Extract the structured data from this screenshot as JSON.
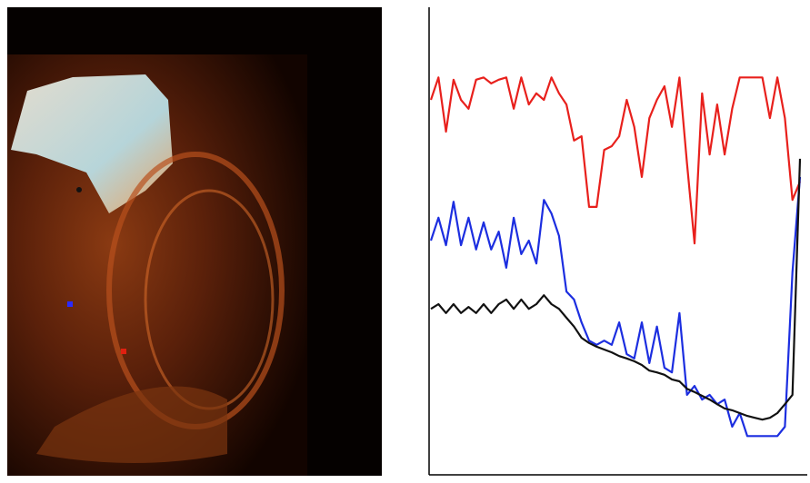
{
  "chart_data": {
    "type": "line",
    "x": [
      0,
      1,
      2,
      3,
      4,
      5,
      6,
      7,
      8,
      9,
      10,
      11,
      12,
      13,
      14,
      15,
      16,
      17,
      18,
      19,
      20,
      21,
      22,
      23,
      24,
      25,
      26,
      27,
      28,
      29,
      30,
      31,
      32,
      33,
      34,
      35,
      36,
      37,
      38,
      39,
      40,
      41,
      42,
      43,
      44,
      45,
      46,
      47,
      48,
      49
    ],
    "xlim": [
      0,
      49
    ],
    "ylim": [
      0,
      100
    ],
    "series": [
      {
        "color": "#e8201c",
        "values": [
          80.2,
          85.0,
          73.4,
          84.5,
          80.2,
          78.3,
          84.5,
          85.0,
          83.7,
          84.5,
          85.0,
          78.3,
          85.0,
          79.2,
          81.6,
          80.2,
          85.0,
          81.6,
          79.2,
          71.5,
          72.4,
          57.3,
          57.3,
          69.5,
          70.3,
          72.4,
          80.2,
          74.4,
          63.7,
          76.3,
          80.2,
          83.1,
          74.4,
          85.0,
          66.6,
          49.5,
          81.6,
          68.5,
          79.2,
          68.5,
          78.3,
          85.0,
          85.0,
          85.0,
          85.0,
          76.3,
          85.0,
          76.3,
          58.8,
          62.7
        ]
      },
      {
        "color": "#1c2ee0",
        "values": [
          50.1,
          55.0,
          49.1,
          58.4,
          49.1,
          55.0,
          48.2,
          54.0,
          48.2,
          52.0,
          44.3,
          55.0,
          47.2,
          50.1,
          45.2,
          58.8,
          55.9,
          51.1,
          39.2,
          37.5,
          32.6,
          28.7,
          27.8,
          28.7,
          27.8,
          32.6,
          25.8,
          24.9,
          32.6,
          23.9,
          31.7,
          22.9,
          21.9,
          34.6,
          17.1,
          19.0,
          16.1,
          17.1,
          15.1,
          16.1,
          10.3,
          13.2,
          8.3,
          8.3,
          8.3,
          8.3,
          8.3,
          10.3,
          43.3,
          63.7
        ]
      },
      {
        "color": "#111111",
        "values": [
          35.5,
          36.5,
          34.6,
          36.5,
          34.6,
          35.9,
          34.6,
          36.5,
          34.6,
          36.5,
          37.5,
          35.5,
          37.5,
          35.5,
          36.5,
          38.4,
          36.5,
          35.5,
          33.6,
          31.7,
          29.3,
          28.2,
          27.4,
          26.8,
          26.2,
          25.4,
          24.9,
          24.3,
          23.5,
          22.3,
          21.9,
          21.4,
          20.4,
          20.0,
          18.4,
          17.7,
          16.9,
          16.1,
          15.1,
          14.2,
          13.8,
          13.2,
          12.6,
          12.2,
          11.8,
          12.2,
          13.2,
          15.1,
          17.1,
          67.6
        ]
      }
    ]
  }
}
